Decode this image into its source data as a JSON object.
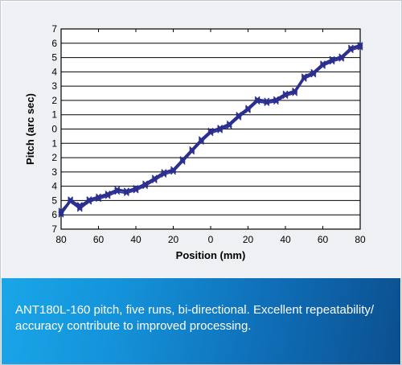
{
  "caption": "ANT180L-160 pitch, five runs, bi-directional. Excellent repeatability/ accuracy contribute to improved processing.",
  "colors": {
    "series": "#2b2f8f",
    "caption_bg_left": "#1aa6e8",
    "caption_bg_right": "#0b4f8f",
    "plot_bg": "#eef0f3"
  },
  "chart_data": {
    "type": "line",
    "title": "",
    "xlabel": "Position (mm)",
    "ylabel": "Pitch (arc sec)",
    "xlim": [
      -80,
      80
    ],
    "ylim": [
      -7,
      7
    ],
    "x_ticks": [
      -80,
      -60,
      -40,
      -20,
      0,
      20,
      40,
      60,
      80
    ],
    "x_tick_labels": [
      "80",
      "60",
      "40",
      "20",
      "0",
      "20",
      "40",
      "60",
      "80"
    ],
    "y_ticks": [
      7,
      6,
      5,
      4,
      3,
      2,
      1,
      0,
      -1,
      -2,
      -3,
      -4,
      -5,
      -6,
      -7
    ],
    "y_tick_labels": [
      "7",
      "6",
      "5",
      "4",
      "3",
      "2",
      "1",
      "0",
      "1",
      "2",
      "3",
      "4",
      "5",
      "6",
      "7"
    ],
    "grid": "horizontal",
    "legend": "none",
    "x": [
      -80,
      -75,
      -70,
      -65,
      -60,
      -55,
      -50,
      -45,
      -40,
      -35,
      -30,
      -25,
      -20,
      -15,
      -10,
      -5,
      0,
      5,
      10,
      15,
      20,
      25,
      30,
      35,
      40,
      45,
      50,
      55,
      60,
      65,
      70,
      75,
      80
    ],
    "series": [
      {
        "values": [
          -5.9,
          -5.0,
          -5.5,
          -5.0,
          -4.8,
          -4.6,
          -4.3,
          -4.4,
          -4.2,
          -3.9,
          -3.5,
          -3.1,
          -2.9,
          -2.2,
          -1.5,
          -0.8,
          -0.2,
          0.0,
          0.3,
          0.9,
          1.4,
          2.0,
          1.9,
          2.0,
          2.4,
          2.6,
          3.6,
          3.9,
          4.5,
          4.8,
          5.0,
          5.6,
          5.8
        ]
      },
      {
        "values": [
          -5.8,
          -4.9,
          -5.4,
          -4.9,
          -4.7,
          -4.5,
          -4.2,
          -4.3,
          -4.1,
          -3.8,
          -3.4,
          -3.0,
          -2.8,
          -2.1,
          -1.4,
          -0.7,
          -0.1,
          0.1,
          0.4,
          1.0,
          1.5,
          2.1,
          2.0,
          2.1,
          2.5,
          2.7,
          3.7,
          4.0,
          4.6,
          4.9,
          5.1,
          5.7,
          5.9
        ]
      },
      {
        "values": [
          -6.0,
          -5.1,
          -5.6,
          -5.1,
          -4.9,
          -4.7,
          -4.4,
          -4.5,
          -4.3,
          -4.0,
          -3.6,
          -3.2,
          -3.0,
          -2.3,
          -1.6,
          -0.9,
          -0.3,
          -0.1,
          0.2,
          0.8,
          1.3,
          1.9,
          1.8,
          1.9,
          2.3,
          2.5,
          3.5,
          3.8,
          4.4,
          4.7,
          4.9,
          5.5,
          5.7
        ]
      },
      {
        "values": [
          -5.7,
          -5.0,
          -5.3,
          -5.0,
          -4.8,
          -4.6,
          -4.2,
          -4.4,
          -4.2,
          -3.9,
          -3.4,
          -3.1,
          -2.8,
          -2.2,
          -1.4,
          -0.8,
          -0.2,
          0.0,
          0.3,
          0.9,
          1.4,
          2.0,
          1.9,
          2.0,
          2.4,
          2.6,
          3.6,
          3.9,
          4.5,
          4.8,
          5.0,
          5.6,
          5.8
        ]
      },
      {
        "values": [
          -5.9,
          -5.0,
          -5.5,
          -4.9,
          -4.8,
          -4.5,
          -4.3,
          -4.3,
          -4.2,
          -3.8,
          -3.5,
          -3.0,
          -2.9,
          -2.1,
          -1.5,
          -0.7,
          -0.2,
          0.1,
          0.3,
          1.0,
          1.4,
          2.1,
          1.9,
          2.1,
          2.4,
          2.7,
          3.6,
          4.0,
          4.5,
          4.9,
          5.0,
          5.7,
          5.8
        ]
      }
    ]
  }
}
